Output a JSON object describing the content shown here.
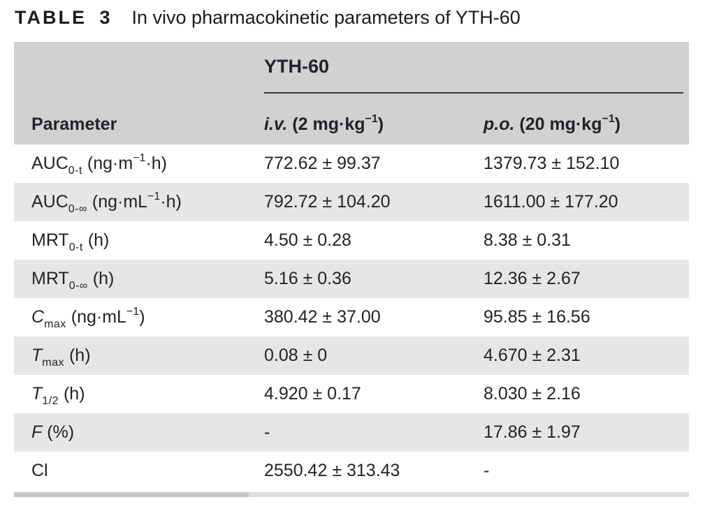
{
  "title": {
    "label": "TABLE 3",
    "text": "In vivo pharmacokinetic parameters of YTH-60"
  },
  "table": {
    "group_header": "YTH-60",
    "columns": {
      "parameter": "Parameter",
      "iv": [
        {
          "t": "i.v.",
          "style": "italic"
        },
        {
          "t": " (2 mg·kg"
        },
        {
          "t": "−1",
          "style": "sup"
        },
        {
          "t": ")"
        }
      ],
      "po": [
        {
          "t": "p.o.",
          "style": "italic"
        },
        {
          "t": " (20 mg·kg"
        },
        {
          "t": "−1",
          "style": "sup"
        },
        {
          "t": ")"
        }
      ]
    },
    "rows": [
      {
        "parameter": [
          {
            "t": "AUC"
          },
          {
            "t": "0-t",
            "style": "sub"
          },
          {
            "t": " (ng·m"
          },
          {
            "t": "−1",
            "style": "sup"
          },
          {
            "t": "·h)"
          }
        ],
        "iv": "772.62 ± 99.37",
        "po": "1379.73 ± 152.10"
      },
      {
        "parameter": [
          {
            "t": "AUC"
          },
          {
            "t": "0-∞",
            "style": "sub"
          },
          {
            "t": " (ng·mL"
          },
          {
            "t": "−1",
            "style": "sup"
          },
          {
            "t": "·h)"
          }
        ],
        "iv": "792.72 ± 104.20",
        "po": "1611.00 ± 177.20"
      },
      {
        "parameter": [
          {
            "t": "MRT"
          },
          {
            "t": "0-t",
            "style": "sub"
          },
          {
            "t": " (h)"
          }
        ],
        "iv": "4.50 ± 0.28",
        "po": "8.38 ± 0.31"
      },
      {
        "parameter": [
          {
            "t": "MRT"
          },
          {
            "t": "0-∞",
            "style": "sub"
          },
          {
            "t": " (h)"
          }
        ],
        "iv": "5.16 ± 0.36",
        "po": "12.36 ± 2.67"
      },
      {
        "parameter": [
          {
            "t": "C",
            "style": "italic"
          },
          {
            "t": "max",
            "style": "sub"
          },
          {
            "t": " (ng·mL"
          },
          {
            "t": "−1",
            "style": "sup"
          },
          {
            "t": ")"
          }
        ],
        "iv": "380.42 ± 37.00",
        "po": "95.85 ± 16.56"
      },
      {
        "parameter": [
          {
            "t": "T",
            "style": "italic"
          },
          {
            "t": "max",
            "style": "sub"
          },
          {
            "t": " (h)"
          }
        ],
        "iv": "0.08 ± 0",
        "po": "4.670 ± 2.31"
      },
      {
        "parameter": [
          {
            "t": "T",
            "style": "italic"
          },
          {
            "t": "1/2",
            "style": "sub"
          },
          {
            "t": " (h)"
          }
        ],
        "iv": "4.920 ± 0.17",
        "po": "8.030 ± 2.16"
      },
      {
        "parameter": [
          {
            "t": "F",
            "style": "italic"
          },
          {
            "t": " (%)"
          }
        ],
        "iv": "-",
        "po": "17.86 ± 1.97"
      },
      {
        "parameter": [
          {
            "t": "Cl"
          }
        ],
        "iv": "2550.42 ± 313.43",
        "po": "-"
      }
    ]
  },
  "colors": {
    "header_bg": "#d1d1d3",
    "stripe_bg": "#e6e6e7",
    "rule_color": "#3a3a3c",
    "bar_left": "#c6c6c8",
    "bar_right": "#dedede",
    "text": "#232327"
  }
}
